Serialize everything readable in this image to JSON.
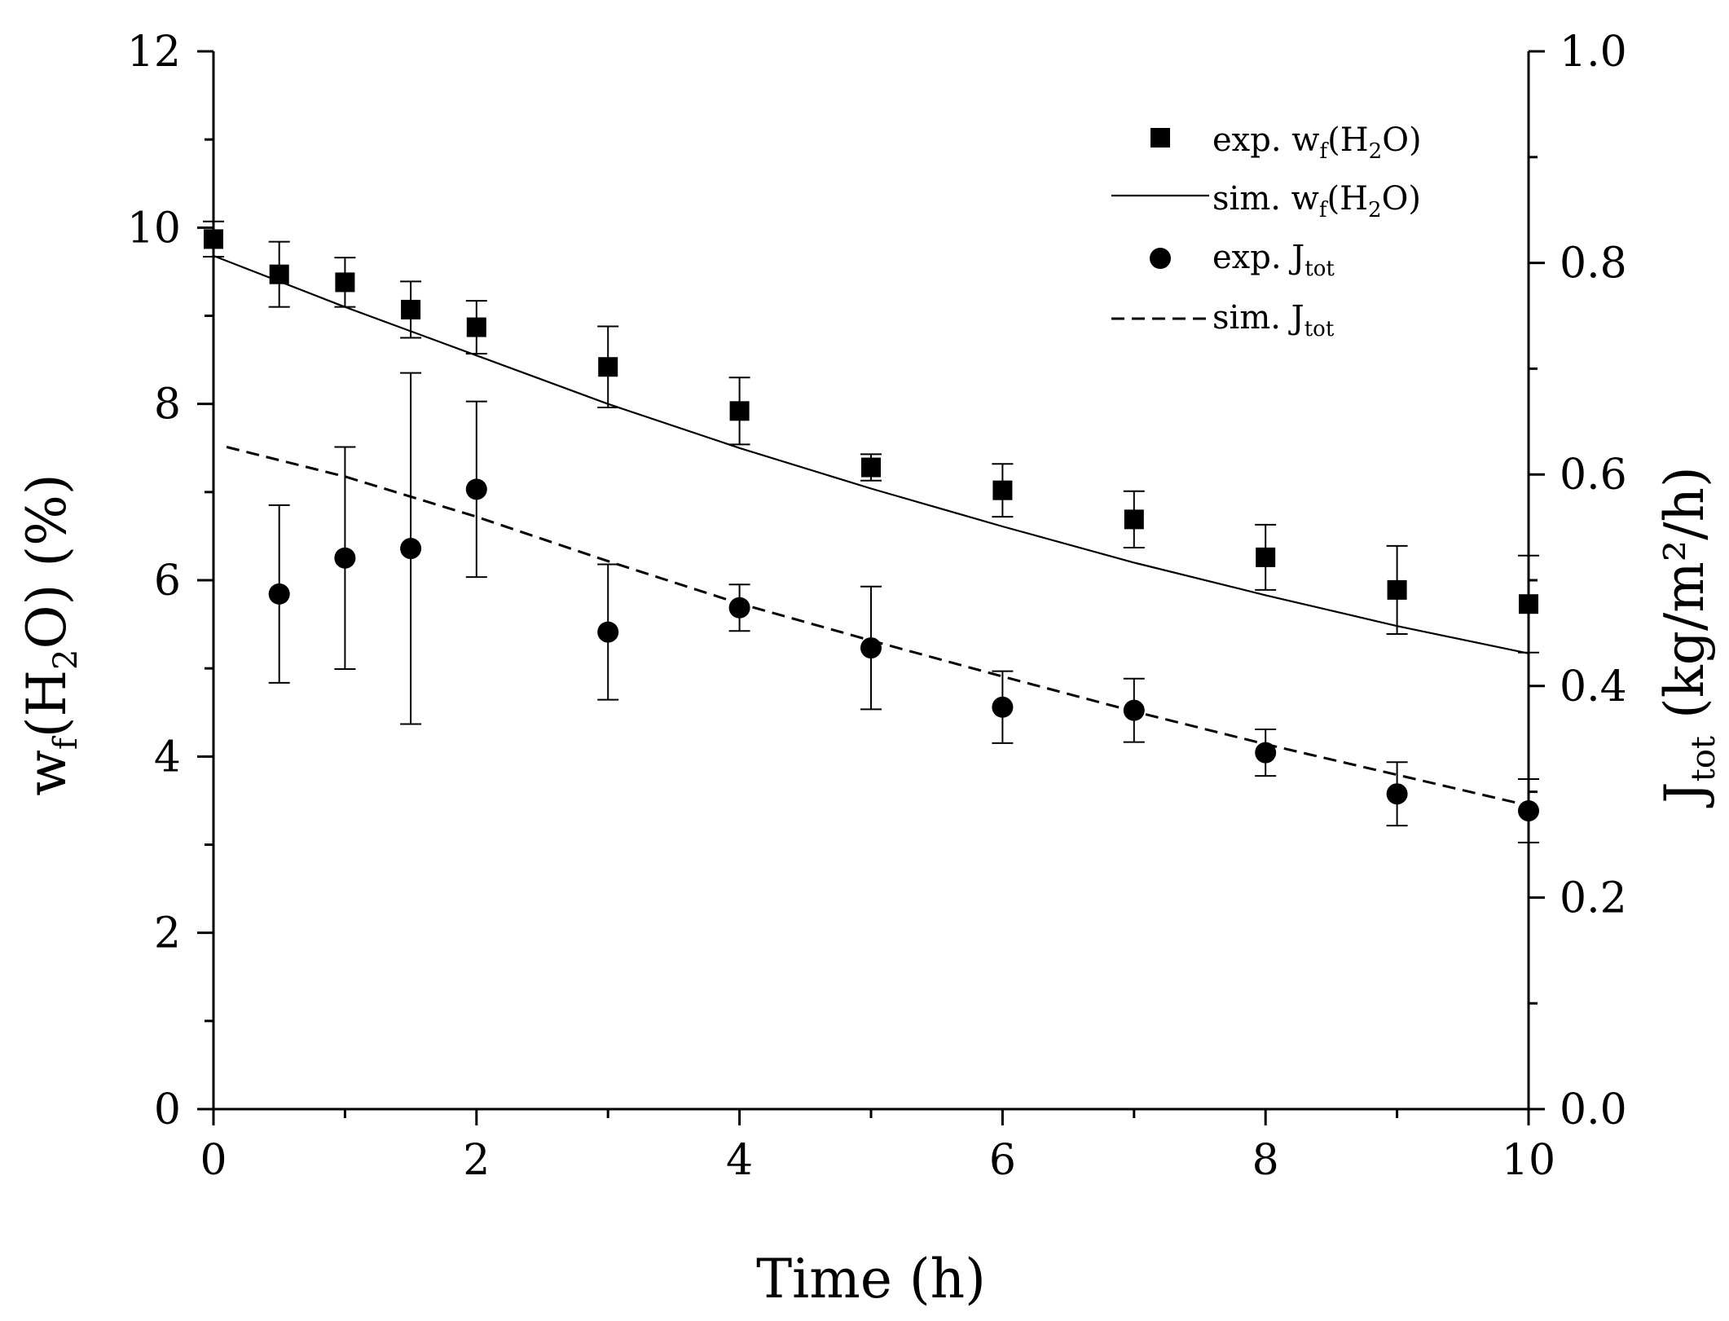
{
  "chart_data": {
    "type": "scatter",
    "title": "",
    "xlabel": "Time (h)",
    "ylabel": {
      "base": "w",
      "sub1": "f",
      "mid": "(H",
      "sub2": "2",
      "end": "O) (%)"
    },
    "y2label": {
      "base": "J",
      "sub": "tot",
      "end": " (kg/m²/h)"
    },
    "xlim": [
      0,
      10
    ],
    "ylim": [
      0,
      12
    ],
    "y2lim": [
      0.0,
      1.0
    ],
    "xticks": [
      "0",
      "2",
      "4",
      "6",
      "8",
      "10"
    ],
    "yticks": [
      "0",
      "2",
      "4",
      "6",
      "8",
      "10",
      "12"
    ],
    "y2ticks": [
      "0.0",
      "0.2",
      "0.4",
      "0.6",
      "0.8",
      "1.0"
    ],
    "legend_position": "top-right",
    "series": [
      {
        "name": "exp. wf(H2O)",
        "legend": {
          "pre": "exp. w",
          "sub1": "f",
          "mid": "(H",
          "sub2": "2",
          "post": "O)"
        },
        "marker": "square",
        "axis": "left",
        "x": [
          0,
          0.5,
          1,
          1.5,
          2,
          3,
          4,
          5,
          6,
          7,
          8,
          9,
          10
        ],
        "y": [
          9.87,
          9.47,
          9.38,
          9.07,
          8.87,
          8.42,
          7.92,
          7.28,
          7.02,
          6.69,
          6.26,
          5.89,
          5.73
        ],
        "err": [
          0.2,
          0.37,
          0.28,
          0.32,
          0.3,
          0.46,
          0.38,
          0.15,
          0.3,
          0.32,
          0.37,
          0.5,
          0.55
        ]
      },
      {
        "name": "sim. wf(H2O)",
        "legend": {
          "pre": "sim. w",
          "sub1": "f",
          "mid": "(H",
          "sub2": "2",
          "post": "O)"
        },
        "style": "solid",
        "axis": "left",
        "x": [
          0,
          1,
          2,
          3,
          4,
          5,
          6,
          7,
          8,
          9,
          10
        ],
        "y": [
          9.68,
          9.1,
          8.55,
          8.0,
          7.5,
          7.04,
          6.61,
          6.2,
          5.83,
          5.48,
          5.17
        ]
      },
      {
        "name": "exp. Jtot",
        "legend": {
          "pre": "exp. J",
          "sub1": "tot"
        },
        "marker": "circle",
        "axis": "right",
        "x": [
          0.5,
          1,
          1.5,
          2,
          3,
          4,
          5,
          6,
          7,
          8,
          9,
          10
        ],
        "y": [
          0.487,
          0.521,
          0.53,
          0.586,
          0.451,
          0.474,
          0.436,
          0.38,
          0.377,
          0.337,
          0.298,
          0.282
        ],
        "err": [
          0.084,
          0.105,
          0.166,
          0.083,
          0.064,
          0.022,
          0.058,
          0.034,
          0.03,
          0.022,
          0.03,
          0.03
        ]
      },
      {
        "name": "sim. Jtot",
        "legend": {
          "pre": "sim. J",
          "sub1": "tot"
        },
        "style": "dashed",
        "axis": "right",
        "x": [
          0.1,
          1,
          2,
          3,
          4,
          5,
          6,
          7,
          8,
          9,
          10
        ],
        "y": [
          0.626,
          0.598,
          0.56,
          0.518,
          0.478,
          0.443,
          0.409,
          0.376,
          0.345,
          0.316,
          0.287
        ]
      }
    ]
  }
}
